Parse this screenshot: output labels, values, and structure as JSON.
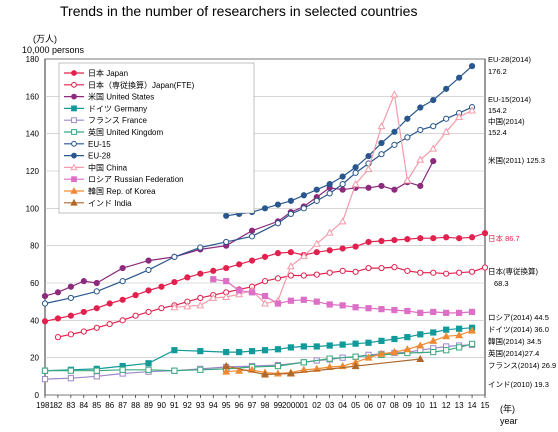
{
  "chart_data": {
    "type": "line",
    "title": "Trends in the number of researchers in selected countries",
    "ylabel": "(万人)",
    "ylabel_en": "10,000 persons",
    "xlabel": "(年)",
    "xlabel_en": "year",
    "ylim": [
      0,
      180
    ],
    "yticks": [
      "0",
      "20",
      "40",
      "60",
      "80",
      "100",
      "120",
      "140",
      "160",
      "180"
    ],
    "xlim": [
      1981,
      2015
    ],
    "xtick_labels": [
      "1981",
      "82",
      "83",
      "84",
      "85",
      "86",
      "87",
      "88",
      "89",
      "90",
      "91",
      "92",
      "93",
      "94",
      "95",
      "96",
      "97",
      "98",
      "99",
      "2000",
      "01",
      "02",
      "03",
      "04",
      "05",
      "06",
      "07",
      "08",
      "09",
      "10",
      "11",
      "12",
      "13",
      "14",
      "15"
    ],
    "grid": true,
    "legend_position": "top-left",
    "series": [
      {
        "name": "日本 Japan",
        "color": "#e2214e",
        "marker": "filled-circle",
        "x": [
          1981,
          1982,
          1983,
          1984,
          1985,
          1986,
          1987,
          1988,
          1989,
          1990,
          1991,
          1992,
          1993,
          1994,
          1995,
          1996,
          1997,
          1998,
          1999,
          2000,
          2001,
          2002,
          2003,
          2004,
          2005,
          2006,
          2007,
          2008,
          2009,
          2010,
          2011,
          2012,
          2013,
          2014,
          2015
        ],
        "values": [
          39.5,
          41,
          42.5,
          44.5,
          46.5,
          49,
          51,
          53.5,
          56,
          58,
          60.5,
          63,
          65,
          66.5,
          68,
          70,
          72,
          74,
          76,
          76.5,
          75,
          76.5,
          77.5,
          78.5,
          79.5,
          82,
          82.5,
          83,
          83.5,
          84,
          84,
          84.5,
          84,
          84.5,
          86.7
        ]
      },
      {
        "name": "日本（専従換算）Japan(FTE)",
        "color": "#e2214e",
        "marker": "open-circle",
        "x": [
          1982,
          1983,
          1984,
          1985,
          1986,
          1987,
          1988,
          1989,
          1990,
          1991,
          1992,
          1993,
          1994,
          1995,
          1996,
          1997,
          1998,
          1999,
          2000,
          2001,
          2002,
          2003,
          2004,
          2005,
          2006,
          2007,
          2008,
          2009,
          2010,
          2011,
          2012,
          2013,
          2014,
          2015
        ],
        "values": [
          31,
          32.5,
          34,
          36,
          38,
          40,
          42.5,
          44.5,
          46.5,
          48,
          50,
          52,
          53.5,
          55,
          56.5,
          58,
          61,
          62.5,
          64,
          64,
          64.5,
          65.5,
          66.5,
          66,
          68,
          68,
          68.5,
          66.5,
          65.5,
          65.5,
          65,
          65.5,
          66,
          68.3
        ]
      },
      {
        "name": "米国 United States",
        "color": "#8c2a7c",
        "marker": "filled-circle",
        "x": [
          1981,
          1982,
          1983,
          1984,
          1985,
          1987,
          1989,
          1991,
          1993,
          1995,
          1997,
          1999,
          2000,
          2001,
          2002,
          2003,
          2004,
          2005,
          2006,
          2007,
          2008,
          2009,
          2010,
          2011
        ],
        "values": [
          53,
          55,
          58,
          61,
          60,
          68,
          72,
          74,
          78,
          80,
          88,
          93,
          98,
          101,
          106,
          111,
          110,
          111,
          111,
          112,
          110,
          114,
          112,
          125.3
        ]
      },
      {
        "name": "ドイツ Germany",
        "color": "#109a9a",
        "marker": "filled-square",
        "x": [
          1981,
          1983,
          1985,
          1987,
          1989,
          1991,
          1993,
          1995,
          1996,
          1997,
          1998,
          1999,
          2000,
          2001,
          2002,
          2003,
          2004,
          2005,
          2006,
          2007,
          2008,
          2009,
          2010,
          2011,
          2012,
          2013,
          2014
        ],
        "values": [
          13,
          13.5,
          14,
          15.5,
          17,
          24,
          23.5,
          23,
          23,
          23.5,
          24,
          24.5,
          25.5,
          26,
          26,
          26.5,
          27,
          27.5,
          28,
          29,
          30,
          31,
          32.5,
          33.5,
          35,
          35.5,
          36.0
        ]
      },
      {
        "name": "フランス France",
        "color": "#9b88c8",
        "marker": "open-square",
        "x": [
          1981,
          1983,
          1985,
          1987,
          1989,
          1991,
          1993,
          1995,
          1997,
          1999,
          2001,
          2002,
          2003,
          2004,
          2005,
          2006,
          2007,
          2008,
          2009,
          2010,
          2011,
          2012,
          2013,
          2014
        ],
        "values": [
          8.5,
          9,
          10,
          11.5,
          12.5,
          13,
          14,
          15,
          15.5,
          16,
          17.5,
          18.5,
          19,
          20,
          20.5,
          21.5,
          22,
          22.5,
          23,
          24,
          25,
          26,
          26.5,
          26.9
        ]
      },
      {
        "name": "英国 United Kingdom",
        "color": "#3aa87f",
        "marker": "open-square",
        "x": [
          1981,
          1983,
          1985,
          1987,
          1989,
          1991,
          1993,
          1995,
          1997,
          1999,
          2001,
          2003,
          2005,
          2007,
          2009,
          2011,
          2012,
          2013,
          2014
        ],
        "values": [
          13,
          13,
          13,
          13.5,
          13.5,
          13,
          13.5,
          14,
          15,
          15.5,
          17.5,
          19.5,
          20.5,
          21.5,
          22.5,
          23,
          24,
          25.5,
          27.4
        ]
      },
      {
        "name": "EU-15",
        "color": "#29578d",
        "marker": "open-circle",
        "x": [
          1981,
          1983,
          1985,
          1987,
          1989,
          1991,
          1993,
          1995,
          1997,
          1999,
          2000,
          2001,
          2002,
          2003,
          2004,
          2005,
          2006,
          2007,
          2008,
          2009,
          2010,
          2011,
          2012,
          2013,
          2014
        ],
        "values": [
          49,
          52,
          55.5,
          61,
          67,
          74,
          79,
          82,
          85,
          92,
          97,
          100,
          104,
          108,
          113,
          119,
          124,
          129,
          134,
          138,
          142,
          144,
          148,
          151,
          154.2
        ]
      },
      {
        "name": "EU-28",
        "color": "#29578d",
        "marker": "filled-circle",
        "x": [
          1995,
          1996,
          1997,
          1998,
          1999,
          2000,
          2001,
          2002,
          2003,
          2004,
          2005,
          2006,
          2007,
          2008,
          2009,
          2010,
          2011,
          2012,
          2013,
          2014
        ],
        "values": [
          96,
          97,
          98,
          100,
          102,
          104,
          107,
          110,
          113,
          117,
          122,
          128,
          135,
          141,
          148,
          154,
          158,
          164,
          170,
          176.2
        ]
      },
      {
        "name": "中国 China",
        "color": "#f49aaa",
        "marker": "open-triangle",
        "x": [
          1991,
          1992,
          1993,
          1994,
          1995,
          1996,
          1997,
          1998,
          1999,
          2000,
          2001,
          2002,
          2003,
          2004,
          2005,
          2006,
          2007,
          2008,
          2009,
          2010,
          2011,
          2012,
          2013,
          2014
        ],
        "values": [
          47,
          47.5,
          48,
          52,
          52.5,
          54,
          56,
          49,
          50.5,
          69,
          74.5,
          81,
          87,
          93,
          113,
          121,
          144,
          161,
          115,
          126,
          132,
          141,
          149,
          152.4
        ]
      },
      {
        "name": "ロシア Russian Federation",
        "color": "#dd6fc6",
        "marker": "filled-square",
        "x": [
          1994,
          1995,
          1996,
          1997,
          1998,
          1999,
          2000,
          2001,
          2002,
          2003,
          2004,
          2005,
          2006,
          2007,
          2008,
          2009,
          2010,
          2011,
          2012,
          2013,
          2014
        ],
        "values": [
          62,
          61,
          56,
          55,
          53,
          49,
          50.5,
          51,
          50,
          48.5,
          48,
          47,
          46.5,
          46,
          45.5,
          45,
          44,
          44.5,
          44,
          44,
          44.5
        ]
      },
      {
        "name": "韓国 Rep. of Korea",
        "color": "#f08a32",
        "marker": "filled-triangle",
        "x": [
          1995,
          1996,
          1997,
          1998,
          1999,
          2000,
          2001,
          2002,
          2003,
          2004,
          2005,
          2006,
          2007,
          2008,
          2009,
          2010,
          2011,
          2012,
          2013,
          2014
        ],
        "values": [
          12.5,
          13,
          13.5,
          12,
          11.5,
          12,
          13.5,
          14,
          15,
          15.5,
          17.5,
          20,
          22,
          23,
          24.5,
          26.5,
          29,
          31.5,
          32,
          34.5
        ]
      },
      {
        "name": "インド India",
        "color": "#b0682a",
        "marker": "filled-triangle",
        "x": [
          1995,
          1998,
          2000,
          2005,
          2010
        ],
        "values": [
          15.5,
          11,
          11.5,
          15.5,
          19.3
        ]
      }
    ],
    "end_labels": [
      {
        "text": "EU-28(2014)",
        "color": "#000000"
      },
      {
        "text": "176.2",
        "color": "#000000"
      },
      {
        "text": "EU-15(2014)",
        "color": "#000000"
      },
      {
        "text": "154.2",
        "color": "#000000"
      },
      {
        "text": "中国(2014)",
        "color": "#000000"
      },
      {
        "text": "152.4",
        "color": "#000000"
      },
      {
        "text": "米国(2011) 125.3",
        "color": "#000000"
      },
      {
        "text": "日本 86.7",
        "color": "#e2214e"
      },
      {
        "text": "日本(専従換算)",
        "color": "#000000"
      },
      {
        "text": "68.3",
        "color": "#000000"
      },
      {
        "text": "ロシア(2014) 44.5",
        "color": "#000000"
      },
      {
        "text": "ドイツ(2014) 36.0",
        "color": "#000000"
      },
      {
        "text": "韓国(2014) 34.5",
        "color": "#000000"
      },
      {
        "text": "英国(2014)27.4",
        "color": "#000000"
      },
      {
        "text": "フランス(2014) 26.9",
        "color": "#000000"
      },
      {
        "text": "インド(2010) 19.3",
        "color": "#000000"
      }
    ]
  }
}
